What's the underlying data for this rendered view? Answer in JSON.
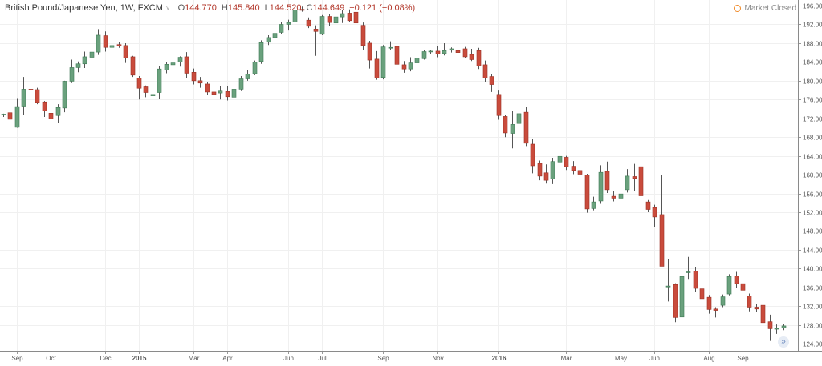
{
  "header": {
    "symbol": "British Pound/Japanese Yen, 1W, FXCM",
    "caret": "˅",
    "open_label": "O",
    "open": "144.770",
    "high_label": "H",
    "high": "145.840",
    "low_label": "L",
    "low": "144.520",
    "close_label": "C",
    "close": "144.649",
    "change": "−0.121 (−0.08%)"
  },
  "status": {
    "market": "Market Closed",
    "icon": "clock-icon"
  },
  "colors": {
    "up": "#6aa17d",
    "down": "#c94b3c",
    "wick": "#555555",
    "grid": "#f0f0f0",
    "axis": "#8a8a8a"
  },
  "chart_data": {
    "type": "candlestick",
    "ylim": [
      122.5,
      197.2
    ],
    "y_ticks": [
      "196.000",
      "192.000",
      "188.000",
      "184.000",
      "180.000",
      "176.000",
      "172.000",
      "168.000",
      "164.000",
      "160.000",
      "156.000",
      "152.000",
      "148.000",
      "144.000",
      "140.000",
      "136.000",
      "132.000",
      "128.000",
      "124.000"
    ],
    "x_ticks": [
      {
        "label": "Sep",
        "index": 2,
        "bold": false
      },
      {
        "label": "Oct",
        "index": 7,
        "bold": false
      },
      {
        "label": "Dec",
        "index": 15,
        "bold": false
      },
      {
        "label": "2015",
        "index": 20,
        "bold": true
      },
      {
        "label": "Mar",
        "index": 28,
        "bold": false
      },
      {
        "label": "Apr",
        "index": 33,
        "bold": false
      },
      {
        "label": "Jun",
        "index": 42,
        "bold": false
      },
      {
        "label": "Jul",
        "index": 47,
        "bold": false
      },
      {
        "label": "Sep",
        "index": 56,
        "bold": false
      },
      {
        "label": "Nov",
        "index": 64,
        "bold": false
      },
      {
        "label": "2016",
        "index": 73,
        "bold": true
      },
      {
        "label": "Mar",
        "index": 83,
        "bold": false
      },
      {
        "label": "May",
        "index": 91,
        "bold": false
      },
      {
        "label": "Jun",
        "index": 96,
        "bold": false
      },
      {
        "label": "Aug",
        "index": 104,
        "bold": false
      },
      {
        "label": "Sep",
        "index": 109,
        "bold": false
      }
    ],
    "candles": [
      {
        "o": 172.7,
        "h": 173.0,
        "l": 172.3,
        "c": 172.9
      },
      {
        "o": 173.2,
        "h": 173.6,
        "l": 171.2,
        "c": 171.8
      },
      {
        "o": 170.1,
        "h": 176.3,
        "l": 170.0,
        "c": 174.5
      },
      {
        "o": 174.6,
        "h": 180.8,
        "l": 172.8,
        "c": 178.2
      },
      {
        "o": 178.2,
        "h": 178.8,
        "l": 177.5,
        "c": 178.0
      },
      {
        "o": 178.1,
        "h": 178.5,
        "l": 175.0,
        "c": 175.4
      },
      {
        "o": 175.5,
        "h": 175.7,
        "l": 172.3,
        "c": 173.6
      },
      {
        "o": 173.1,
        "h": 174.5,
        "l": 168.0,
        "c": 171.9
      },
      {
        "o": 172.6,
        "h": 175.0,
        "l": 171.0,
        "c": 174.3
      },
      {
        "o": 174.2,
        "h": 180.0,
        "l": 173.3,
        "c": 179.9
      },
      {
        "o": 179.9,
        "h": 184.5,
        "l": 179.5,
        "c": 182.8
      },
      {
        "o": 182.8,
        "h": 184.1,
        "l": 181.8,
        "c": 183.6
      },
      {
        "o": 183.6,
        "h": 186.2,
        "l": 182.7,
        "c": 185.1
      },
      {
        "o": 185.0,
        "h": 188.2,
        "l": 184.1,
        "c": 186.1
      },
      {
        "o": 186.1,
        "h": 191.0,
        "l": 185.5,
        "c": 189.7
      },
      {
        "o": 189.6,
        "h": 190.5,
        "l": 186.2,
        "c": 187.1
      },
      {
        "o": 187.1,
        "h": 189.0,
        "l": 183.2,
        "c": 187.5
      },
      {
        "o": 187.7,
        "h": 188.2,
        "l": 187.0,
        "c": 187.4
      },
      {
        "o": 187.5,
        "h": 188.0,
        "l": 183.8,
        "c": 184.8
      },
      {
        "o": 185.1,
        "h": 185.3,
        "l": 180.8,
        "c": 181.2
      },
      {
        "o": 180.6,
        "h": 181.0,
        "l": 176.0,
        "c": 178.4
      },
      {
        "o": 178.7,
        "h": 179.0,
        "l": 176.5,
        "c": 177.5
      },
      {
        "o": 176.8,
        "h": 178.0,
        "l": 175.9,
        "c": 177.1
      },
      {
        "o": 177.5,
        "h": 183.2,
        "l": 176.2,
        "c": 182.5
      },
      {
        "o": 182.3,
        "h": 183.9,
        "l": 181.6,
        "c": 183.5
      },
      {
        "o": 183.4,
        "h": 185.0,
        "l": 182.5,
        "c": 183.8
      },
      {
        "o": 184.0,
        "h": 185.2,
        "l": 183.0,
        "c": 185.0
      },
      {
        "o": 185.1,
        "h": 186.1,
        "l": 180.6,
        "c": 181.6
      },
      {
        "o": 181.8,
        "h": 182.6,
        "l": 179.2,
        "c": 180.0
      },
      {
        "o": 180.0,
        "h": 180.8,
        "l": 178.5,
        "c": 179.5
      },
      {
        "o": 179.3,
        "h": 179.8,
        "l": 176.9,
        "c": 177.6
      },
      {
        "o": 177.6,
        "h": 178.3,
        "l": 176.2,
        "c": 177.1
      },
      {
        "o": 177.4,
        "h": 178.8,
        "l": 176.0,
        "c": 177.8
      },
      {
        "o": 177.7,
        "h": 178.9,
        "l": 175.8,
        "c": 176.6
      },
      {
        "o": 176.5,
        "h": 179.3,
        "l": 175.6,
        "c": 178.2
      },
      {
        "o": 178.2,
        "h": 181.0,
        "l": 177.8,
        "c": 180.4
      },
      {
        "o": 180.4,
        "h": 182.3,
        "l": 180.0,
        "c": 181.4
      },
      {
        "o": 181.5,
        "h": 184.3,
        "l": 181.2,
        "c": 184.0
      },
      {
        "o": 184.1,
        "h": 188.6,
        "l": 183.6,
        "c": 188.1
      },
      {
        "o": 188.2,
        "h": 189.7,
        "l": 187.6,
        "c": 189.2
      },
      {
        "o": 189.2,
        "h": 190.5,
        "l": 188.6,
        "c": 190.1
      },
      {
        "o": 190.3,
        "h": 192.6,
        "l": 190.0,
        "c": 192.0
      },
      {
        "o": 192.0,
        "h": 193.0,
        "l": 190.7,
        "c": 192.4
      },
      {
        "o": 192.5,
        "h": 196.0,
        "l": 192.2,
        "c": 195.1
      },
      {
        "o": 195.2,
        "h": 195.8,
        "l": 194.7,
        "c": 195.0
      },
      {
        "o": 192.9,
        "h": 193.5,
        "l": 191.2,
        "c": 191.6
      },
      {
        "o": 191.0,
        "h": 191.8,
        "l": 185.3,
        "c": 190.5
      },
      {
        "o": 189.9,
        "h": 194.0,
        "l": 189.7,
        "c": 193.7
      },
      {
        "o": 193.7,
        "h": 194.3,
        "l": 191.6,
        "c": 192.4
      },
      {
        "o": 192.3,
        "h": 194.6,
        "l": 191.0,
        "c": 193.6
      },
      {
        "o": 193.6,
        "h": 195.0,
        "l": 192.3,
        "c": 194.3
      },
      {
        "o": 194.4,
        "h": 195.2,
        "l": 192.6,
        "c": 192.8
      },
      {
        "o": 194.6,
        "h": 195.4,
        "l": 192.2,
        "c": 192.3
      },
      {
        "o": 191.8,
        "h": 192.4,
        "l": 186.5,
        "c": 187.5
      },
      {
        "o": 188.0,
        "h": 188.5,
        "l": 182.6,
        "c": 184.4
      },
      {
        "o": 184.6,
        "h": 186.3,
        "l": 180.2,
        "c": 180.6
      },
      {
        "o": 180.7,
        "h": 187.6,
        "l": 180.3,
        "c": 187.2
      },
      {
        "o": 187.0,
        "h": 188.4,
        "l": 186.5,
        "c": 187.1
      },
      {
        "o": 187.3,
        "h": 188.6,
        "l": 182.8,
        "c": 183.5
      },
      {
        "o": 183.4,
        "h": 184.2,
        "l": 181.7,
        "c": 182.5
      },
      {
        "o": 182.5,
        "h": 185.0,
        "l": 182.0,
        "c": 183.8
      },
      {
        "o": 183.8,
        "h": 185.1,
        "l": 183.2,
        "c": 184.8
      },
      {
        "o": 184.7,
        "h": 186.5,
        "l": 184.5,
        "c": 186.2
      },
      {
        "o": 186.2,
        "h": 186.5,
        "l": 185.7,
        "c": 186.3
      },
      {
        "o": 186.3,
        "h": 187.4,
        "l": 185.0,
        "c": 185.7
      },
      {
        "o": 185.8,
        "h": 188.0,
        "l": 185.4,
        "c": 186.4
      },
      {
        "o": 186.5,
        "h": 187.1,
        "l": 186.0,
        "c": 186.8
      },
      {
        "o": 186.4,
        "h": 189.0,
        "l": 186.0,
        "c": 186.0
      },
      {
        "o": 186.8,
        "h": 187.2,
        "l": 184.8,
        "c": 185.1
      },
      {
        "o": 185.6,
        "h": 186.8,
        "l": 184.2,
        "c": 184.5
      },
      {
        "o": 186.4,
        "h": 187.0,
        "l": 182.5,
        "c": 183.1
      },
      {
        "o": 183.4,
        "h": 184.3,
        "l": 179.8,
        "c": 180.6
      },
      {
        "o": 180.9,
        "h": 181.4,
        "l": 177.6,
        "c": 179.2
      },
      {
        "o": 177.1,
        "h": 177.9,
        "l": 171.7,
        "c": 172.6
      },
      {
        "o": 172.4,
        "h": 172.8,
        "l": 168.0,
        "c": 168.9
      },
      {
        "o": 168.8,
        "h": 173.5,
        "l": 165.6,
        "c": 170.7
      },
      {
        "o": 170.9,
        "h": 174.6,
        "l": 170.1,
        "c": 173.0
      },
      {
        "o": 173.3,
        "h": 174.4,
        "l": 166.1,
        "c": 166.7
      },
      {
        "o": 166.5,
        "h": 167.6,
        "l": 160.3,
        "c": 161.9
      },
      {
        "o": 162.4,
        "h": 163.0,
        "l": 158.8,
        "c": 159.7
      },
      {
        "o": 160.4,
        "h": 162.2,
        "l": 158.1,
        "c": 158.8
      },
      {
        "o": 159.1,
        "h": 163.6,
        "l": 158.0,
        "c": 162.8
      },
      {
        "o": 162.7,
        "h": 164.4,
        "l": 160.5,
        "c": 163.9
      },
      {
        "o": 163.7,
        "h": 164.0,
        "l": 161.0,
        "c": 161.7
      },
      {
        "o": 161.8,
        "h": 162.9,
        "l": 160.1,
        "c": 160.9
      },
      {
        "o": 160.9,
        "h": 161.6,
        "l": 159.5,
        "c": 160.1
      },
      {
        "o": 159.9,
        "h": 160.2,
        "l": 151.9,
        "c": 152.7
      },
      {
        "o": 152.8,
        "h": 155.3,
        "l": 152.4,
        "c": 154.2
      },
      {
        "o": 154.4,
        "h": 162.0,
        "l": 153.8,
        "c": 160.5
      },
      {
        "o": 160.7,
        "h": 162.8,
        "l": 156.1,
        "c": 156.8
      },
      {
        "o": 155.4,
        "h": 156.5,
        "l": 154.3,
        "c": 155.0
      },
      {
        "o": 155.0,
        "h": 156.3,
        "l": 154.3,
        "c": 155.9
      },
      {
        "o": 156.8,
        "h": 161.2,
        "l": 156.2,
        "c": 159.7
      },
      {
        "o": 159.6,
        "h": 162.3,
        "l": 156.5,
        "c": 159.2
      },
      {
        "o": 161.7,
        "h": 164.5,
        "l": 154.5,
        "c": 155.5
      },
      {
        "o": 154.2,
        "h": 154.6,
        "l": 152.0,
        "c": 152.6
      },
      {
        "o": 153.0,
        "h": 153.6,
        "l": 148.8,
        "c": 151.0
      },
      {
        "o": 151.5,
        "h": 159.9,
        "l": 141.0,
        "c": 140.5
      },
      {
        "o": 136.1,
        "h": 142.1,
        "l": 133.0,
        "c": 136.3
      },
      {
        "o": 136.6,
        "h": 136.9,
        "l": 128.6,
        "c": 129.6
      },
      {
        "o": 129.7,
        "h": 143.4,
        "l": 129.2,
        "c": 138.3
      },
      {
        "o": 139.2,
        "h": 142.5,
        "l": 137.8,
        "c": 139.3
      },
      {
        "o": 139.5,
        "h": 140.4,
        "l": 135.1,
        "c": 135.8
      },
      {
        "o": 135.7,
        "h": 136.0,
        "l": 132.8,
        "c": 133.6
      },
      {
        "o": 133.9,
        "h": 134.4,
        "l": 130.4,
        "c": 131.3
      },
      {
        "o": 131.4,
        "h": 131.8,
        "l": 129.6,
        "c": 131.1
      },
      {
        "o": 132.2,
        "h": 134.5,
        "l": 131.8,
        "c": 134.0
      },
      {
        "o": 134.6,
        "h": 138.8,
        "l": 134.3,
        "c": 138.3
      },
      {
        "o": 138.4,
        "h": 139.3,
        "l": 135.9,
        "c": 136.8
      },
      {
        "o": 136.8,
        "h": 137.1,
        "l": 134.5,
        "c": 135.4
      },
      {
        "o": 134.2,
        "h": 134.7,
        "l": 130.9,
        "c": 131.8
      },
      {
        "o": 131.8,
        "h": 132.4,
        "l": 130.8,
        "c": 131.4
      },
      {
        "o": 132.2,
        "h": 132.7,
        "l": 127.5,
        "c": 128.5
      },
      {
        "o": 128.7,
        "h": 130.2,
        "l": 124.6,
        "c": 127.2
      },
      {
        "o": 127.1,
        "h": 128.1,
        "l": 126.1,
        "c": 127.3
      },
      {
        "o": 127.4,
        "h": 128.3,
        "l": 126.9,
        "c": 127.8
      }
    ]
  }
}
